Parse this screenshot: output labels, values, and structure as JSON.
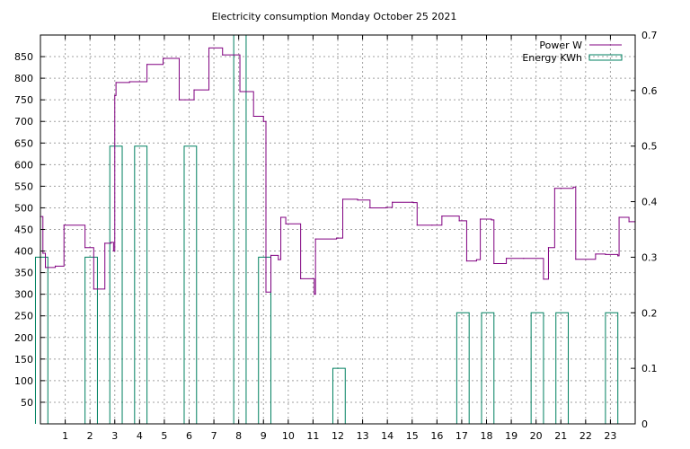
{
  "chart_data": {
    "type": "line",
    "title": "Electricity consumption Monday October 25 2021",
    "xlabel": "",
    "ylabel": "",
    "y2label": "",
    "xlim": [
      0,
      24
    ],
    "ylim": [
      0,
      900
    ],
    "y2lim": [
      0,
      0.7
    ],
    "grid": true,
    "legend_position": "top-right",
    "x_ticks": [
      "1",
      "2",
      "3",
      "4",
      "5",
      "6",
      "7",
      "8",
      "9",
      "10",
      "11",
      "12",
      "13",
      "14",
      "15",
      "16",
      "17",
      "18",
      "19",
      "20",
      "21",
      "22",
      "23"
    ],
    "y_ticks": [
      "50",
      "100",
      "150",
      "200",
      "250",
      "300",
      "350",
      "400",
      "450",
      "500",
      "550",
      "600",
      "650",
      "700",
      "750",
      "800",
      "850"
    ],
    "y2_ticks": [
      "0",
      "0.1",
      "0.2",
      "0.3",
      "0.4",
      "0.5",
      "0.6",
      "0.7"
    ],
    "series": [
      {
        "name": "Power W",
        "axis": "y",
        "style": "steps",
        "color": "#800080",
        "points": [
          [
            0.0,
            480
          ],
          [
            0.1,
            395
          ],
          [
            0.2,
            362
          ],
          [
            0.6,
            365
          ],
          [
            0.95,
            460
          ],
          [
            1.8,
            408
          ],
          [
            2.15,
            312
          ],
          [
            2.6,
            418
          ],
          [
            2.85,
            420
          ],
          [
            2.95,
            400
          ],
          [
            3.0,
            760
          ],
          [
            3.05,
            790
          ],
          [
            3.6,
            792
          ],
          [
            4.3,
            832
          ],
          [
            4.95,
            846
          ],
          [
            5.6,
            750
          ],
          [
            6.2,
            773
          ],
          [
            6.8,
            870
          ],
          [
            7.35,
            854
          ],
          [
            8.05,
            769
          ],
          [
            8.6,
            712
          ],
          [
            9.0,
            700
          ],
          [
            9.1,
            305
          ],
          [
            9.3,
            390
          ],
          [
            9.6,
            380
          ],
          [
            9.7,
            478
          ],
          [
            9.9,
            463
          ],
          [
            10.5,
            336
          ],
          [
            11.05,
            300
          ],
          [
            11.1,
            428
          ],
          [
            11.95,
            430
          ],
          [
            12.2,
            520
          ],
          [
            12.8,
            518
          ],
          [
            13.3,
            500
          ],
          [
            13.95,
            501
          ],
          [
            14.2,
            513
          ],
          [
            15.05,
            512
          ],
          [
            15.2,
            460
          ],
          [
            15.8,
            460
          ],
          [
            16.2,
            481
          ],
          [
            16.9,
            470
          ],
          [
            17.2,
            377
          ],
          [
            17.6,
            380
          ],
          [
            17.75,
            474
          ],
          [
            18.2,
            472
          ],
          [
            18.3,
            371
          ],
          [
            18.8,
            383
          ],
          [
            19.5,
            383
          ],
          [
            20.3,
            335
          ],
          [
            20.5,
            408
          ],
          [
            20.75,
            545
          ],
          [
            21.5,
            548
          ],
          [
            21.6,
            381
          ],
          [
            22.4,
            393
          ],
          [
            22.8,
            392
          ],
          [
            23.3,
            389
          ],
          [
            23.35,
            478
          ],
          [
            23.75,
            468
          ],
          [
            24.0,
            468
          ]
        ]
      },
      {
        "name": "Energy KWh",
        "axis": "y2",
        "style": "boxes",
        "color": "#008060",
        "x": [
          0,
          2,
          3,
          4,
          6,
          8,
          9,
          12,
          17,
          18,
          20,
          21,
          23
        ],
        "values": [
          0.3,
          0.3,
          0.5,
          0.5,
          0.5,
          0.7,
          0.3,
          0.1,
          0.2,
          0.2,
          0.2,
          0.2,
          0.2
        ]
      }
    ]
  }
}
